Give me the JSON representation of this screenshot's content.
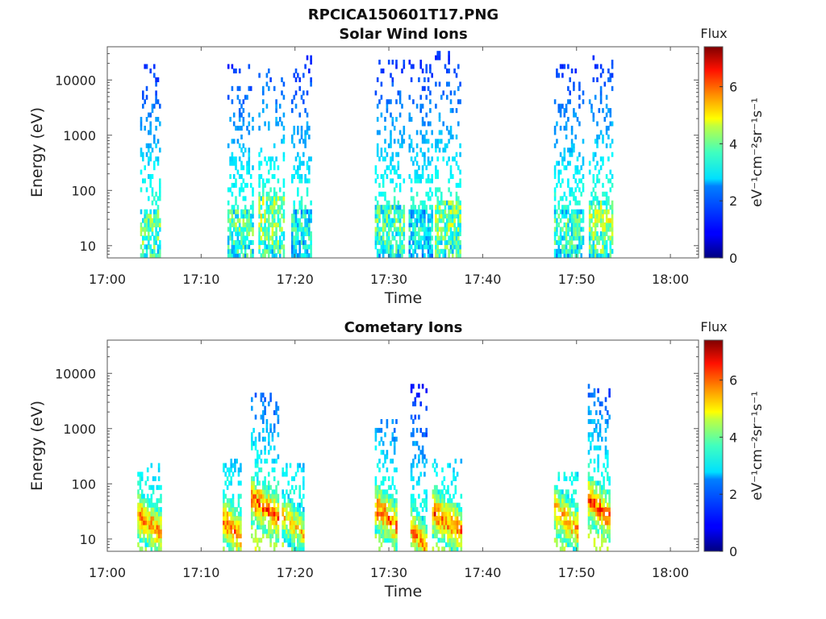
{
  "figure": {
    "title": "RPCICA150601T17.PNG"
  },
  "colors": {
    "colormap": "jet",
    "axis": "#555555",
    "background": "#ffffff"
  },
  "chart_data": [
    {
      "type": "heatmap",
      "title": "Solar Wind Ions",
      "xlabel": "Time",
      "ylabel": "Energy (eV)",
      "y_scale": "log",
      "xlim": [
        "17:00",
        "18:03"
      ],
      "ylim": [
        6,
        40000
      ],
      "x_ticks": [
        "17:00",
        "17:10",
        "17:20",
        "17:30",
        "17:40",
        "17:50",
        "18:00"
      ],
      "y_ticks": [
        "10",
        "100",
        "1000",
        "10000"
      ],
      "colorbar": {
        "title": "Flux",
        "label": "eV⁻¹cm⁻²sr⁻¹s⁻¹",
        "range": [
          0,
          7.4
        ],
        "ticks": [
          "0",
          "2",
          "4",
          "6"
        ]
      },
      "bursts": [
        {
          "start": "17:03.5",
          "end": "17:05.6",
          "peak_energy_eV": 20,
          "max_energy_eV": 20000,
          "peak_flux": 4.6
        },
        {
          "start": "17:12.8",
          "end": "17:15.6",
          "peak_energy_eV": 20,
          "max_energy_eV": 25000,
          "peak_flux": 4.4
        },
        {
          "start": "17:16.1",
          "end": "17:18.8",
          "peak_energy_eV": 35,
          "max_energy_eV": 15000,
          "peak_flux": 5.0
        },
        {
          "start": "17:19.6",
          "end": "17:21.8",
          "peak_energy_eV": 20,
          "max_energy_eV": 30000,
          "peak_flux": 3.8
        },
        {
          "start": "17:28.5",
          "end": "17:31.6",
          "peak_energy_eV": 25,
          "max_energy_eV": 25000,
          "peak_flux": 4.4
        },
        {
          "start": "17:32.1",
          "end": "17:34.6",
          "peak_energy_eV": 20,
          "max_energy_eV": 25000,
          "peak_flux": 3.6
        },
        {
          "start": "17:34.9",
          "end": "17:37.6",
          "peak_energy_eV": 30,
          "max_energy_eV": 35000,
          "peak_flux": 4.8
        },
        {
          "start": "17:47.6",
          "end": "17:50.8",
          "peak_energy_eV": 20,
          "max_energy_eV": 20000,
          "peak_flux": 4.2
        },
        {
          "start": "17:51.3",
          "end": "17:53.8",
          "peak_energy_eV": 30,
          "max_energy_eV": 28000,
          "peak_flux": 5.0
        }
      ]
    },
    {
      "type": "heatmap",
      "title": "Cometary Ions",
      "xlabel": "Time",
      "ylabel": "Energy (eV)",
      "y_scale": "log",
      "xlim": [
        "17:00",
        "18:03"
      ],
      "ylim": [
        6,
        40000
      ],
      "x_ticks": [
        "17:00",
        "17:10",
        "17:20",
        "17:30",
        "17:40",
        "17:50",
        "18:00"
      ],
      "y_ticks": [
        "10",
        "100",
        "1000",
        "10000"
      ],
      "colorbar": {
        "title": "Flux",
        "label": "eV⁻¹cm⁻²sr⁻¹s⁻¹",
        "range": [
          0,
          7.4
        ],
        "ticks": [
          "0",
          "2",
          "4",
          "6"
        ]
      },
      "bursts": [
        {
          "start": "17:03.2",
          "end": "17:05.8",
          "peak_energy_eV": 18,
          "max_energy_eV": 250,
          "peak_flux": 6.6
        },
        {
          "start": "17:12.3",
          "end": "17:14.3",
          "peak_energy_eV": 15,
          "max_energy_eV": 300,
          "peak_flux": 6.6
        },
        {
          "start": "17:15.3",
          "end": "17:18.3",
          "peak_energy_eV": 35,
          "max_energy_eV": 4500,
          "peak_flux": 6.8
        },
        {
          "start": "17:18.6",
          "end": "17:21.0",
          "peak_energy_eV": 18,
          "max_energy_eV": 250,
          "peak_flux": 5.8
        },
        {
          "start": "17:28.5",
          "end": "17:30.8",
          "peak_energy_eV": 25,
          "max_energy_eV": 1500,
          "peak_flux": 6.8
        },
        {
          "start": "17:32.3",
          "end": "17:34.0",
          "peak_energy_eV": 10,
          "max_energy_eV": 6500,
          "peak_flux": 6.4
        },
        {
          "start": "17:34.6",
          "end": "17:37.8",
          "peak_energy_eV": 20,
          "max_energy_eV": 300,
          "peak_flux": 6.8
        },
        {
          "start": "17:47.6",
          "end": "17:50.2",
          "peak_energy_eV": 22,
          "max_energy_eV": 150,
          "peak_flux": 6.4
        },
        {
          "start": "17:51.2",
          "end": "17:53.6",
          "peak_energy_eV": 35,
          "max_energy_eV": 6500,
          "peak_flux": 6.8
        }
      ]
    }
  ]
}
